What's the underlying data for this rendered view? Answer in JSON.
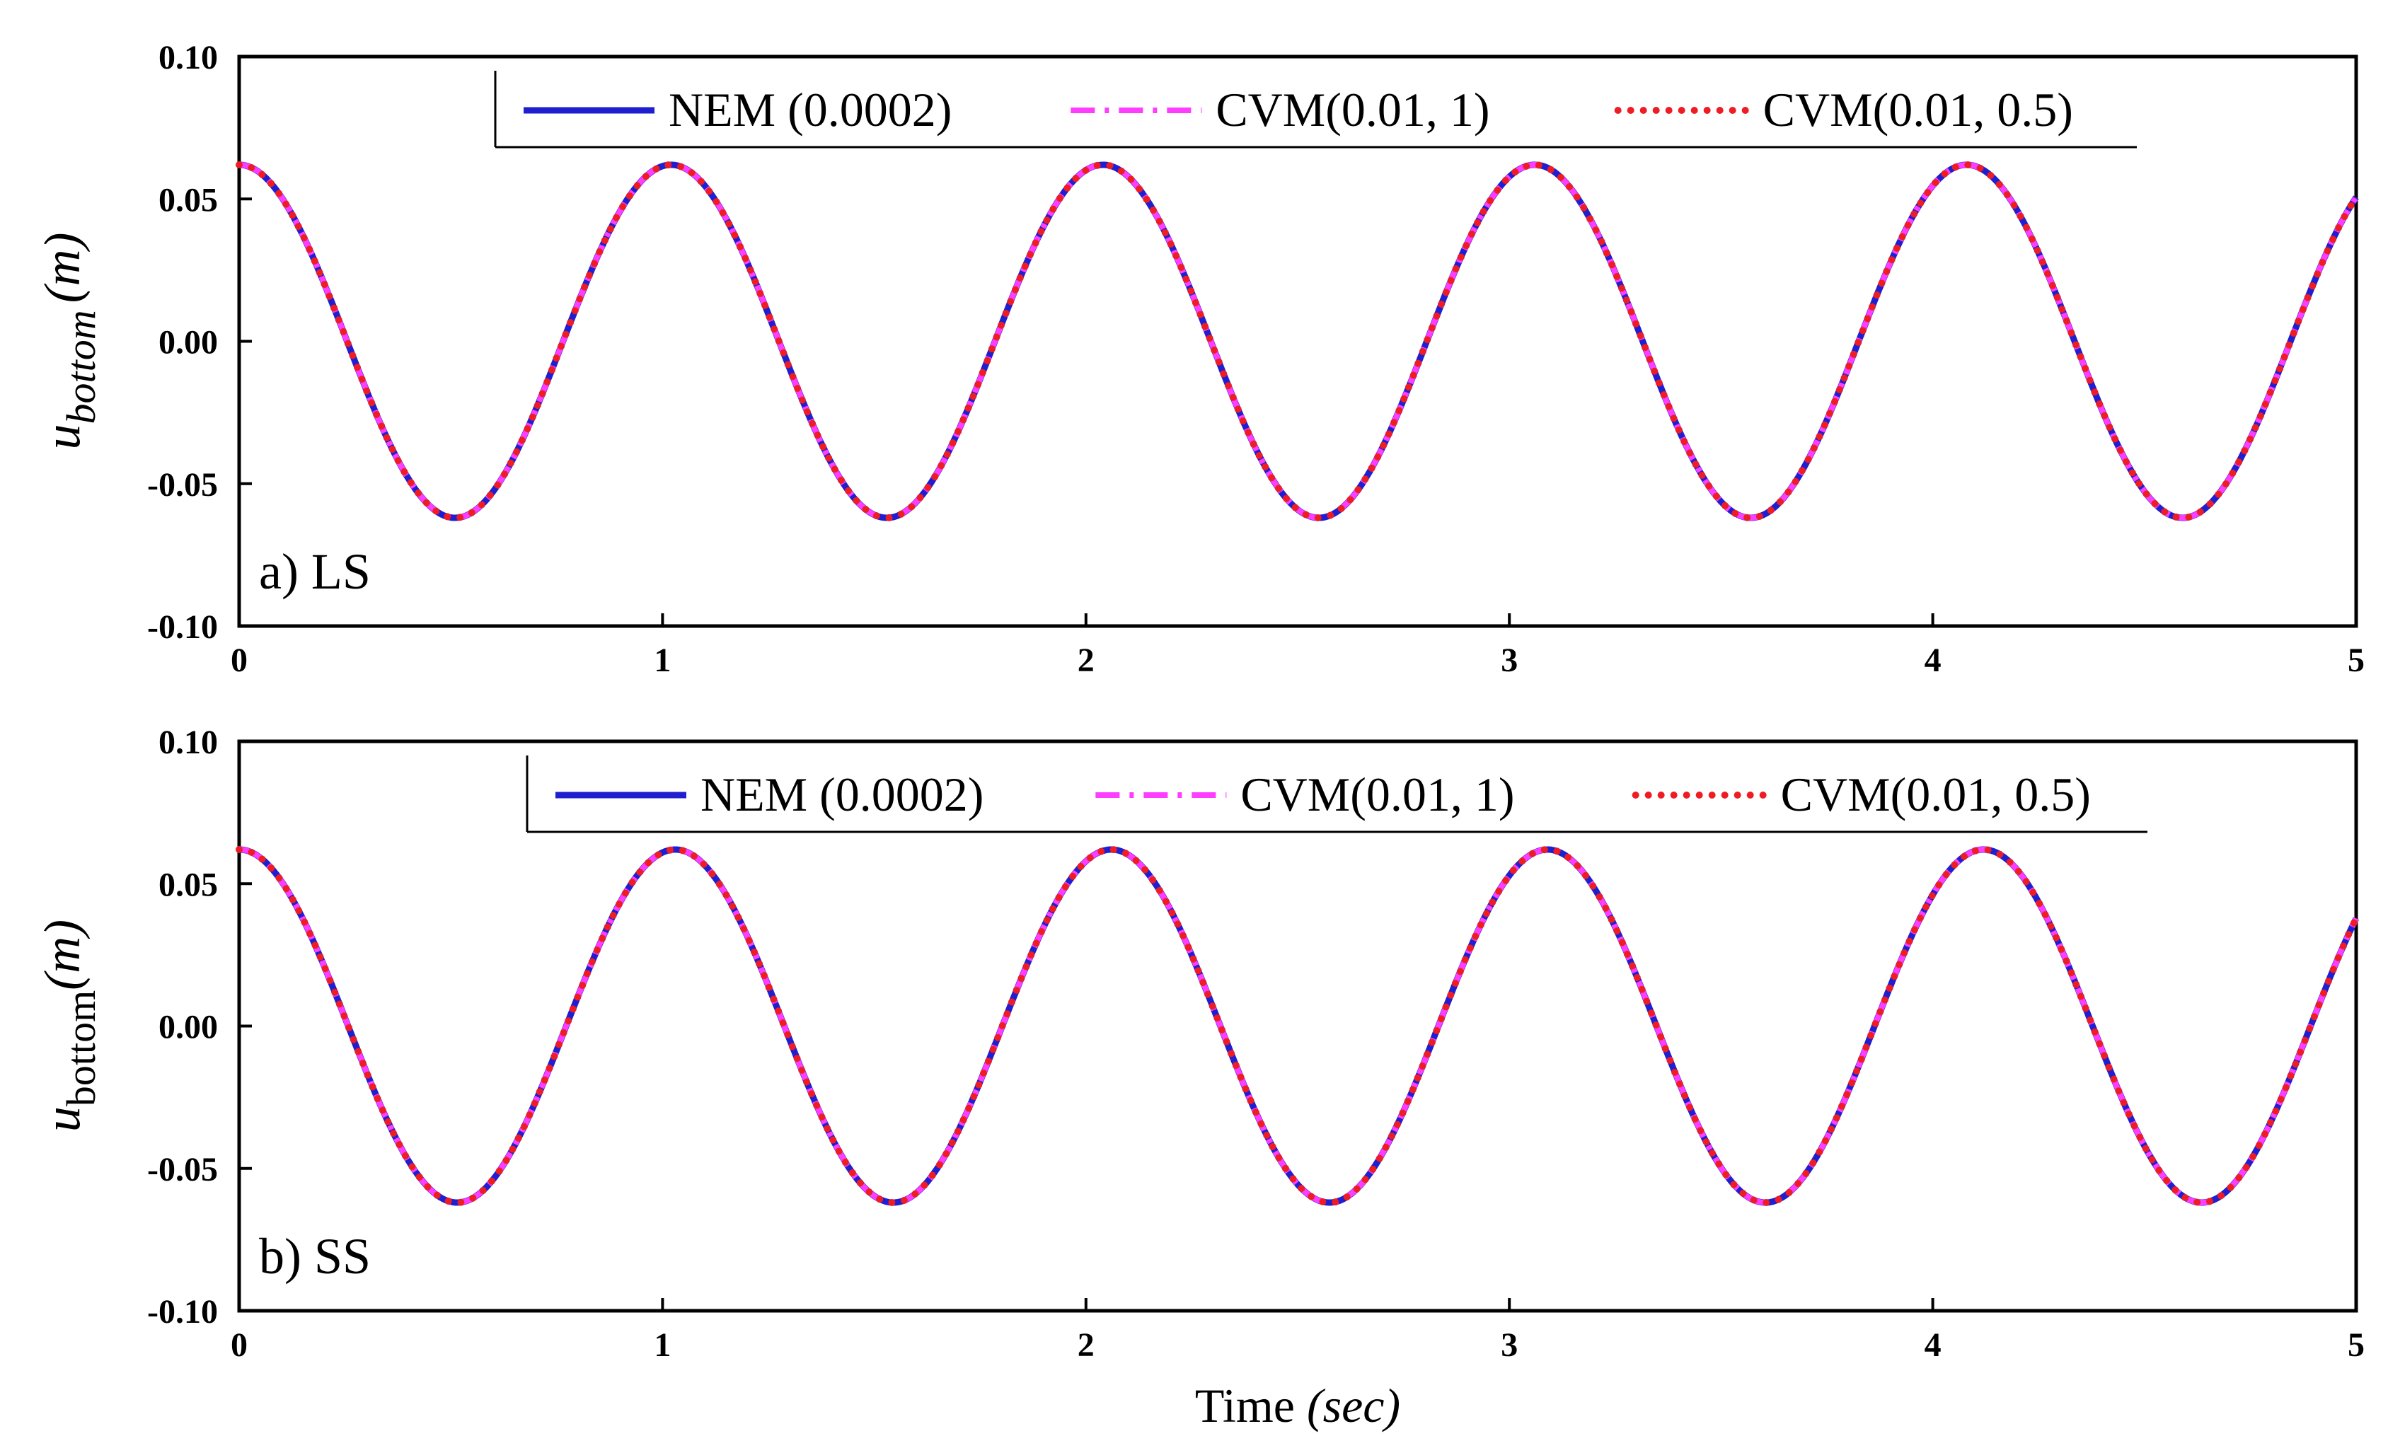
{
  "chart_data": [
    {
      "type": "line",
      "panel_label": "a) LS",
      "ylabel_main": "u",
      "ylabel_sub": "bottom",
      "ylabel_unit": "(m)",
      "ylabel_style": "italic",
      "xlim": [
        0,
        5
      ],
      "ylim": [
        -0.1,
        0.1
      ],
      "xticks": [
        "0",
        "1",
        "2",
        "3",
        "4",
        "5"
      ],
      "yticks": [
        "0.10",
        "0.05",
        "0.00",
        "-0.05",
        "-0.10"
      ],
      "legend_position": "top-center",
      "signal": {
        "amplitude": 0.062,
        "period": 1.02,
        "end_value": 0.05
      },
      "series": [
        {
          "name": "NEM (0.0002)",
          "color": "#1f1fd0",
          "style": "solid"
        },
        {
          "name": "CVM(0.01, 1)",
          "color": "#ff3dff",
          "style": "dashdot"
        },
        {
          "name": "CVM(0.01, 0.5)",
          "color": "#ee1c25",
          "style": "dotted"
        }
      ]
    },
    {
      "type": "line",
      "panel_label": "b) SS",
      "ylabel_main": "u",
      "ylabel_sub": "bottom",
      "ylabel_unit": "(m)",
      "ylabel_style": "normal",
      "xlim": [
        0,
        5
      ],
      "ylim": [
        -0.1,
        0.1
      ],
      "xticks": [
        "0",
        "1",
        "2",
        "3",
        "4",
        "5"
      ],
      "yticks": [
        "0.10",
        "0.05",
        "0.00",
        "-0.05",
        "-0.10"
      ],
      "legend_position": "top-center",
      "signal": {
        "amplitude": 0.062,
        "period": 1.03,
        "end_value": 0.037
      },
      "series": [
        {
          "name": "NEM (0.0002)",
          "color": "#1f1fd0",
          "style": "solid"
        },
        {
          "name": "CVM(0.01, 1)",
          "color": "#ff3dff",
          "style": "dashdot"
        },
        {
          "name": "CVM(0.01, 0.5)",
          "color": "#ee1c25",
          "style": "dotted"
        }
      ]
    }
  ],
  "xlabel_main": "Time ",
  "xlabel_unit": "(sec)"
}
